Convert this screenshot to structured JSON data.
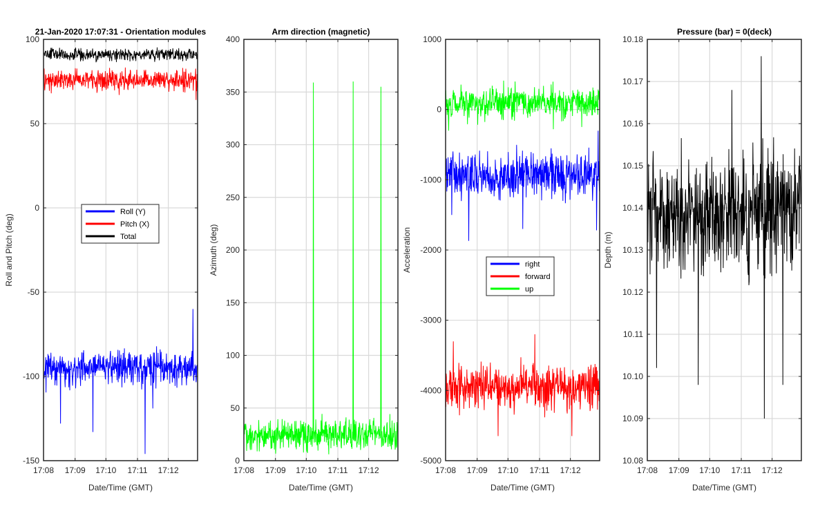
{
  "chart_data": [
    {
      "type": "line",
      "title": "21-Jan-2020 17:07:31 - Orientation modules",
      "xlabel": "Date/Time (GMT)",
      "ylabel": "Roll and Pitch (deg)",
      "ylim": [
        -150,
        100
      ],
      "yticks": [
        -150,
        -100,
        -50,
        0,
        50,
        100
      ],
      "xticks": [
        "17:08",
        "17:09",
        "17:10",
        "17:11",
        "17:12"
      ],
      "legend_position": "center",
      "grid": true,
      "series": [
        {
          "name": "Roll (Y)",
          "color": "#0000ff",
          "mean": -95,
          "spread": 5,
          "spikes": [
            [
              0.11,
              -128
            ],
            [
              0.32,
              -133
            ],
            [
              0.66,
              -146
            ],
            [
              0.71,
              -119
            ],
            [
              0.97,
              -60
            ]
          ]
        },
        {
          "name": "Pitch (X)",
          "color": "#ff0000",
          "mean": 76,
          "spread": 3,
          "spikes": [
            [
              0.05,
              68
            ],
            [
              0.49,
              67
            ],
            [
              0.99,
              64
            ]
          ]
        },
        {
          "name": "Total",
          "color": "#000000",
          "mean": 91,
          "spread": 1.8,
          "spikes": []
        }
      ]
    },
    {
      "type": "line",
      "title": "Arm direction (magnetic)",
      "xlabel": "Date/Time (GMT)",
      "ylabel": "Azimuth (deg)",
      "ylim": [
        0,
        400
      ],
      "yticks": [
        0,
        50,
        100,
        150,
        200,
        250,
        300,
        350,
        400
      ],
      "xticks": [
        "17:08",
        "17:09",
        "17:10",
        "17:11",
        "17:12"
      ],
      "grid": true,
      "series": [
        {
          "name": "",
          "color": "#00ff00",
          "mean": 25,
          "spread": 7,
          "spikes": [
            [
              0.45,
              359
            ],
            [
              0.71,
              360
            ],
            [
              0.89,
              355
            ]
          ]
        }
      ]
    },
    {
      "type": "line",
      "title": "",
      "xlabel": "Date/Time (GMT)",
      "ylabel": "Acceleration",
      "ylim": [
        -5000,
        1000
      ],
      "yticks": [
        -5000,
        -4000,
        -3000,
        -2000,
        -1000,
        0,
        1000
      ],
      "xticks": [
        "17:08",
        "17:09",
        "17:10",
        "17:11",
        "17:12"
      ],
      "legend_position": "center",
      "grid": true,
      "series": [
        {
          "name": "right",
          "color": "#0000ff",
          "mean": -950,
          "spread": 160,
          "spikes": [
            [
              0.04,
              -1500
            ],
            [
              0.15,
              -1870
            ],
            [
              0.5,
              -1700
            ],
            [
              0.98,
              -1720
            ],
            [
              0.99,
              -300
            ]
          ]
        },
        {
          "name": "forward",
          "color": "#ff0000",
          "mean": -3950,
          "spread": 160,
          "spikes": [
            [
              0.05,
              -3300
            ],
            [
              0.34,
              -4650
            ],
            [
              0.58,
              -3200
            ],
            [
              0.82,
              -4650
            ]
          ]
        },
        {
          "name": "up",
          "color": "#00ff00",
          "mean": 100,
          "spread": 110,
          "spikes": [
            [
              0.02,
              -300
            ],
            [
              0.45,
              400
            ],
            [
              0.7,
              -280
            ]
          ]
        }
      ]
    },
    {
      "type": "line",
      "title": "Pressure (bar) = 0(deck)",
      "xlabel": "Date/Time (GMT)",
      "ylabel": "Depth (m)",
      "ylim": [
        10.08,
        10.18
      ],
      "yticks": [
        10.08,
        10.09,
        10.1,
        10.11,
        10.12,
        10.13,
        10.14,
        10.15,
        10.16,
        10.17,
        10.18
      ],
      "xticks": [
        "17:08",
        "17:09",
        "17:10",
        "17:11",
        "17:12"
      ],
      "grid": true,
      "series": [
        {
          "name": "",
          "color": "#000000",
          "mean": 10.139,
          "spread": 0.007,
          "spikes": [
            [
              0.33,
              10.098
            ],
            [
              0.74,
              10.176
            ],
            [
              0.76,
              10.09
            ],
            [
              0.88,
              10.098
            ],
            [
              0.55,
              10.168
            ],
            [
              0.06,
              10.102
            ]
          ]
        }
      ]
    }
  ]
}
